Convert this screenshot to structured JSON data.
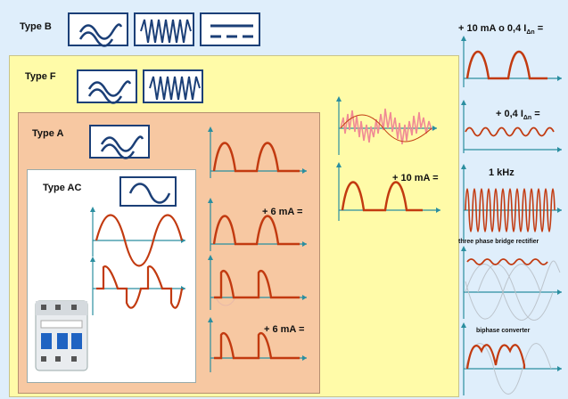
{
  "types": {
    "b": "Type B",
    "f": "Type F",
    "a": "Type A",
    "ac": "Type AC"
  },
  "labels": {
    "plus6_top": "+ 6 mA =",
    "plus6_bottom": "+ 6 mA =",
    "plus10_mid": "+ 10 mA =",
    "right_top_main": "+ 10 mA o 0,4 I",
    "right_top_sub": "Δn",
    "right_top_tail": " =",
    "right_second_main": "+ 0,4 I",
    "right_second_sub": "Δn",
    "right_second_tail": " =",
    "khz": "1 kHz",
    "three_phase": "three phase bridge rectifier",
    "biphase": "biphase converter"
  },
  "colors": {
    "outer_b": "#dfeefb",
    "panel_f": "#fffba8",
    "panel_a": "#f7c8a2",
    "panel_ac": "#ffffff",
    "wave": "#c23a10",
    "axis": "#2a8ea0",
    "icon_border": "#1b3f77",
    "noise": "#f08a95"
  },
  "icons": {
    "b_1": "ac-dc-mixed-wave-icon",
    "b_2": "high-frequency-wave-icon",
    "b_3": "dc-symbol-icon",
    "f_1": "ac-dc-mixed-wave-icon",
    "f_2": "high-frequency-wave-icon",
    "a_1": "ac-dc-mixed-wave-icon",
    "ac_1": "sine-wave-icon",
    "device": "circuit-breaker-rcd-icon"
  }
}
